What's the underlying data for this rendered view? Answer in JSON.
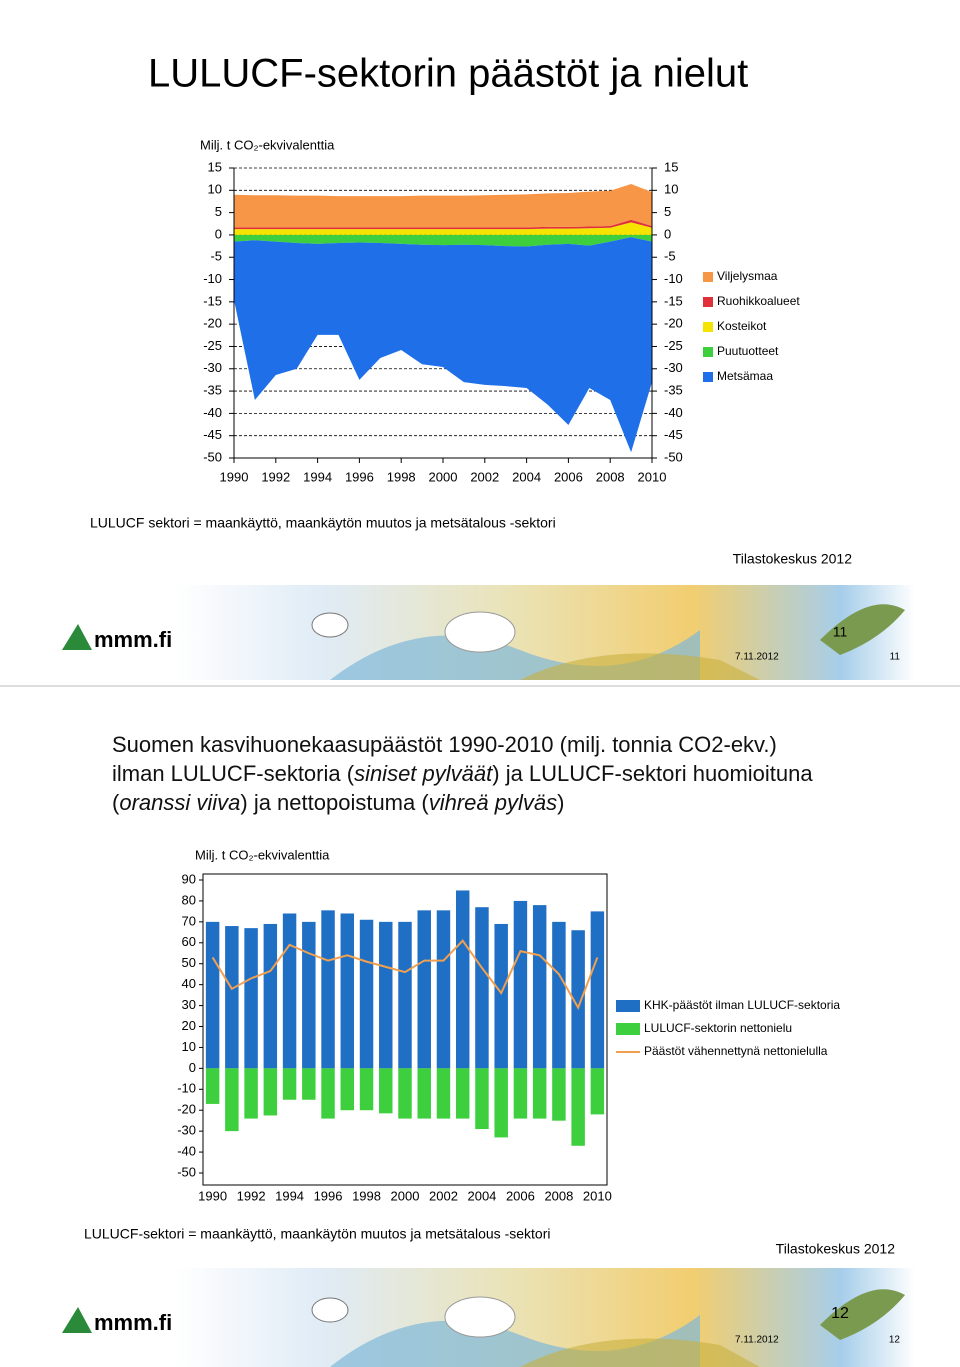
{
  "slides": [
    {
      "title": "LULUCF-sektorin päästöt ja nielut",
      "note": "LULUCF sektori = maankäyttö, maankäytön muutos ja metsätalous -sektori",
      "source": "Tilastokeskus 2012",
      "number": "11",
      "date": "7.11.2012",
      "footer_number": "11",
      "logo": "mmm.fi"
    },
    {
      "heading": [
        {
          "text": "Suomen kasvihuonekaasupäästöt 1990-2010 (milj. tonnia CO2-ekv.) ilman LULUCF-sektoria (",
          "italic": false
        },
        {
          "text": "siniset pylväät",
          "italic": true
        },
        {
          "text": ") ja LULUCF-sektori huomioituna (",
          "italic": false
        },
        {
          "text": "oranssi viiva",
          "italic": true
        },
        {
          "text": ") ja nettopoistuma (",
          "italic": false
        },
        {
          "text": "vihreä pylväs",
          "italic": true
        },
        {
          "text": ")",
          "italic": false
        }
      ],
      "note": "LULUCF-sektori = maankäyttö, maankäytön muutos ja metsätalous -sektori",
      "source": "Tilastokeskus 2012",
      "number": "12",
      "date": "7.11.2012",
      "footer_number": "12",
      "logo": "mmm.fi"
    }
  ],
  "chart_data": [
    {
      "type": "area",
      "stacked": true,
      "y_label": "Milj. t CO₂-ekvivalenttia",
      "x": [
        1990,
        1991,
        1992,
        1993,
        1994,
        1995,
        1996,
        1997,
        1998,
        1999,
        2000,
        2001,
        2002,
        2003,
        2004,
        2005,
        2006,
        2007,
        2008,
        2009,
        2010
      ],
      "xlim": [
        1990,
        2010
      ],
      "xticks": [
        1990,
        1992,
        1994,
        1996,
        1998,
        2000,
        2002,
        2004,
        2006,
        2008,
        2010
      ],
      "ylim": [
        -50,
        15
      ],
      "yticks": [
        -50,
        -45,
        -40,
        -35,
        -30,
        -25,
        -20,
        -15,
        -10,
        -5,
        0,
        5,
        10,
        15
      ],
      "y2lim": [
        -50,
        15
      ],
      "y2ticks": [
        -50,
        -45,
        -40,
        -35,
        -30,
        -25,
        -20,
        -15,
        -10,
        -5,
        0,
        5,
        10,
        15
      ],
      "grid": true,
      "legend": "right",
      "series": [
        {
          "name": "Viljelysmaa",
          "color": "#f79646",
          "values": [
            7.3,
            7.2,
            7.2,
            7.1,
            7.1,
            7.0,
            7.0,
            7.0,
            7.0,
            7.1,
            7.1,
            7.1,
            7.2,
            7.3,
            7.4,
            7.5,
            7.6,
            7.8,
            7.9,
            8.0,
            7.6
          ]
        },
        {
          "name": "Ruohikkoalueet",
          "color": "#e0303a",
          "values": [
            0.4,
            0.4,
            0.4,
            0.4,
            0.4,
            0.4,
            0.4,
            0.4,
            0.4,
            0.4,
            0.4,
            0.4,
            0.4,
            0.4,
            0.4,
            0.4,
            0.4,
            0.4,
            0.4,
            0.6,
            0.4
          ]
        },
        {
          "name": "Kosteikot",
          "color": "#f5e400",
          "values": [
            1.3,
            1.3,
            1.3,
            1.3,
            1.3,
            1.3,
            1.3,
            1.3,
            1.3,
            1.3,
            1.3,
            1.3,
            1.3,
            1.3,
            1.3,
            1.4,
            1.4,
            1.5,
            1.6,
            2.8,
            1.6
          ]
        },
        {
          "name": "Puutuotteet",
          "color": "#3ecf3e",
          "values": [
            -1.5,
            -1.2,
            -1.5,
            -1.8,
            -2.0,
            -1.8,
            -1.7,
            -1.8,
            -2.0,
            -2.2,
            -2.3,
            -2.2,
            -2.3,
            -2.5,
            -2.6,
            -2.2,
            -2.0,
            -2.4,
            -1.5,
            -0.5,
            -1.5
          ]
        },
        {
          "name": "Metsämaa",
          "color": "#1f6fe8",
          "values": [
            -13.1,
            -35.8,
            -29.9,
            -28.2,
            -20.4,
            -20.6,
            -30.8,
            -25.8,
            -23.8,
            -26.8,
            -27.3,
            -30.8,
            -31.3,
            -31.4,
            -31.7,
            -35.8,
            -40.6,
            -31.9,
            -35.5,
            -48.2,
            -31.5
          ]
        }
      ]
    },
    {
      "type": "bar",
      "y_label": "Milj. t CO₂-ekvivalenttia",
      "categories": [
        "1990",
        null,
        "1992",
        null,
        "1994",
        null,
        "1996",
        null,
        "1998",
        null,
        "2000",
        null,
        "2002",
        null,
        "2004",
        null,
        "2006",
        null,
        "2008",
        null,
        "2010"
      ],
      "ylim": [
        -50,
        90
      ],
      "yticks": [
        -50,
        -40,
        -30,
        -20,
        -10,
        0,
        10,
        20,
        30,
        40,
        50,
        60,
        70,
        80,
        90
      ],
      "grid": false,
      "legend": "right",
      "series": [
        {
          "name": "KHK-päästöt ilman LULUCF-sektoria",
          "color": "#1f6fc4",
          "values": [
            70,
            68,
            67,
            69,
            74,
            70,
            75.5,
            74,
            71,
            70,
            70,
            75.5,
            75.5,
            85,
            77,
            69,
            80,
            78,
            70,
            66,
            75
          ]
        },
        {
          "name": "LULUCF-sektorin nettonielu",
          "color": "#3ecf3e",
          "values": [
            -17,
            -30,
            -24,
            -22.5,
            -15,
            -15,
            -24,
            -20,
            -20,
            -21.5,
            -24,
            -24,
            -24,
            -24,
            -29,
            -33,
            -24,
            -24,
            -25,
            -37,
            -22
          ]
        },
        {
          "name": "Päästöt vähennettynä nettonielulla",
          "color": "#f0a050",
          "type": "line",
          "values": [
            53,
            38,
            43,
            46.5,
            59,
            55,
            51.5,
            54,
            51,
            48.5,
            46,
            51.5,
            51.5,
            61,
            48,
            36,
            56,
            54,
            45,
            29,
            53
          ]
        }
      ]
    }
  ]
}
